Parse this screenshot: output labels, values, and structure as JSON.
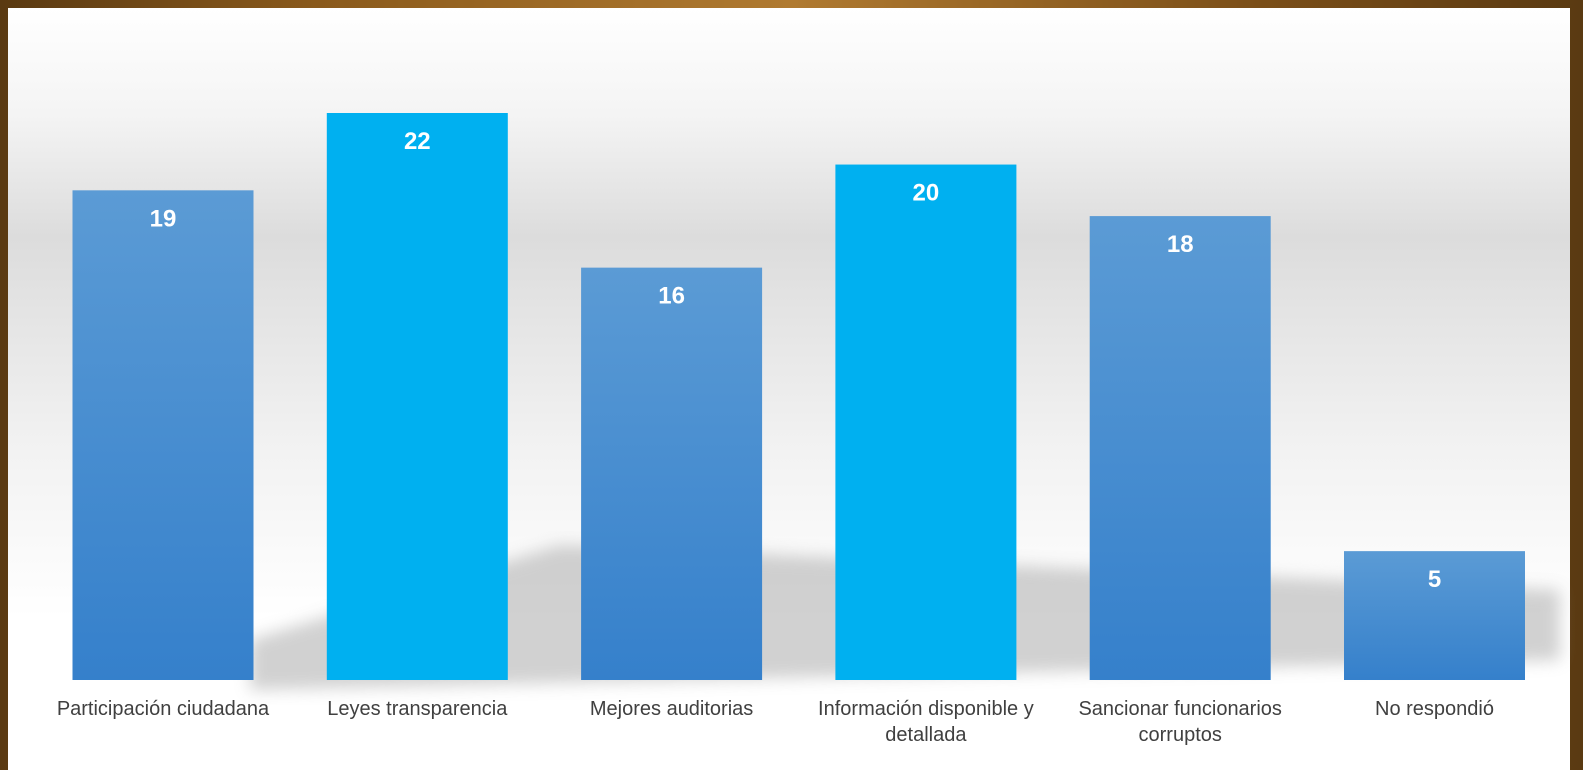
{
  "chart_data": {
    "type": "bar",
    "categories": [
      "Participación ciudadana",
      "Leyes transparencia",
      "Mejores auditorias",
      "Información disponible y detallada",
      "Sancionar funcionarios corruptos",
      "No respondió"
    ],
    "values": [
      19,
      22,
      16,
      20,
      18,
      5
    ],
    "colors": [
      "#5b9bd5",
      "#00b0f0",
      "#5b9bd5",
      "#00b0f0",
      "#5b9bd5",
      "#5b9bd5"
    ]
  }
}
